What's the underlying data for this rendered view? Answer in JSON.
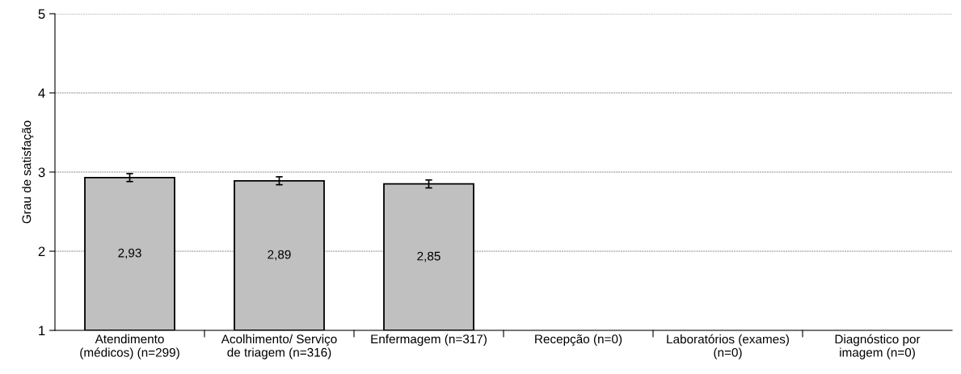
{
  "chart_data": {
    "type": "bar",
    "ylabel": "Grau de satisfação",
    "categories": [
      "Atendimento\n(médicos) (n=299)",
      "Acolhimento/ Serviço\nde triagem (n=316)",
      "Enfermagem (n=317)",
      "Recepção (n=0)",
      "Laboratórios (exames)\n(n=0)",
      "Diagnóstico por\nimagem (n=0)"
    ],
    "values": [
      2.93,
      2.89,
      2.85,
      null,
      null,
      null
    ],
    "errors": [
      0.05,
      0.05,
      0.05,
      null,
      null,
      null
    ],
    "color": "#c0c0c0",
    "value_labels": [
      "2,93",
      "2,89",
      "2,85",
      null,
      null,
      null
    ],
    "ylim": [
      1,
      5
    ],
    "yticks": [
      1,
      2,
      3,
      4,
      5
    ],
    "grid": "y"
  }
}
